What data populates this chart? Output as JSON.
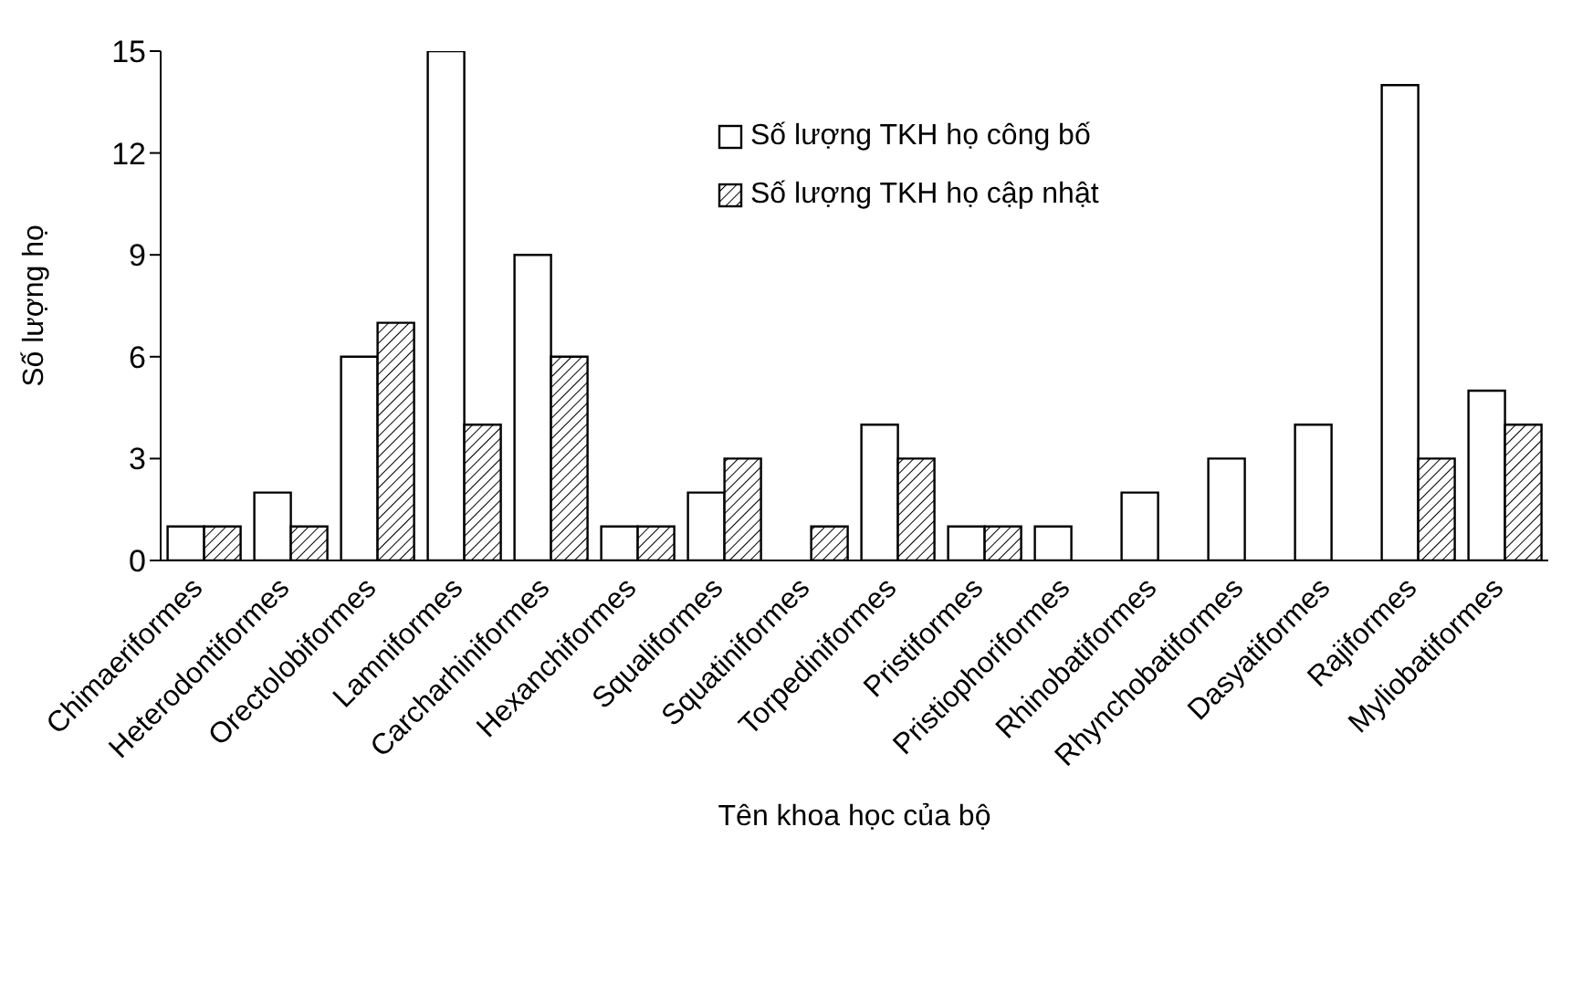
{
  "chart_data": {
    "type": "bar",
    "xlabel": "Tên khoa học của bộ",
    "ylabel": "Số lượng họ",
    "categories": [
      "Chimaeriformes",
      "Heterodontiformes",
      "Orectolobiformes",
      "Lamniformes",
      "Carcharhiniformes",
      "Hexanchiformes",
      "Squaliformes",
      "Squatiniformes",
      "Torpediniformes",
      "Pristiformes",
      "Pristiophoriformes",
      "Rhinobatiformes",
      "Rhynchobatiformes",
      "Dasyatiformes",
      "Rajiformes",
      "Myliobatiformes"
    ],
    "series": [
      {
        "name": "Số lượng TKH họ công bố",
        "color": "#ffffff",
        "values": [
          1,
          2,
          6,
          15,
          9,
          1,
          2,
          0,
          4,
          1,
          1,
          2,
          3,
          4,
          14,
          5
        ]
      },
      {
        "name": "Số lượng TKH họ cập nhật",
        "color": "#000000",
        "values": [
          1,
          1,
          7,
          4,
          6,
          1,
          3,
          1,
          3,
          1,
          0,
          0,
          0,
          0,
          3,
          4
        ]
      }
    ],
    "ylim": [
      0,
      15
    ],
    "yticks": [
      0,
      3,
      6,
      9,
      12,
      15
    ],
    "grid": false,
    "legend": "top"
  }
}
